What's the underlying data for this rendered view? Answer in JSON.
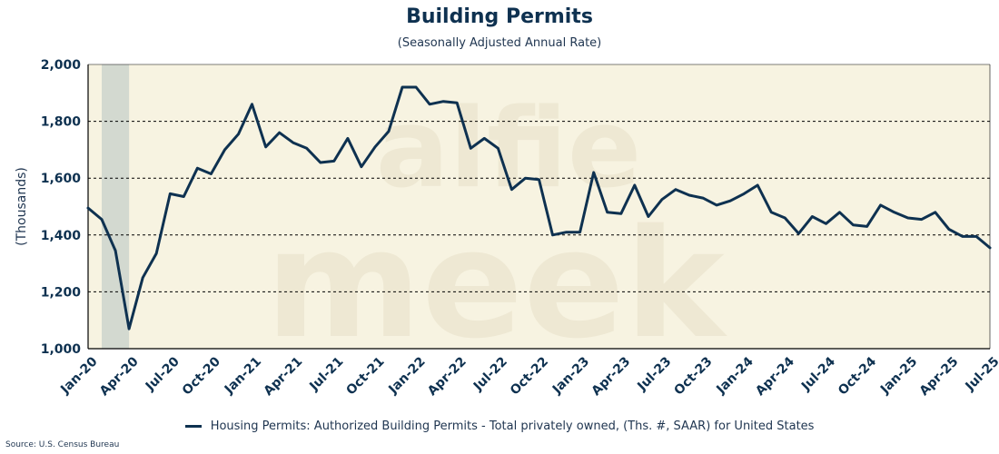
{
  "colors": {
    "plot_background": "#f7f3e1",
    "line": "#0e3150",
    "recession_band": "#cdd3cd",
    "grid": "#000000",
    "watermark": "#e7e0c8"
  },
  "watermark": "alfie meek",
  "legend_label": "Housing Permits: Authorized Building Permits - Total privately owned, (Ths. #, SAAR) for United States",
  "source": "Source: U.S. Census Bureau",
  "chart_data": {
    "type": "line",
    "title": "Building Permits",
    "subtitle": "(Seasonally Adjusted Annual Rate)",
    "xlabel": "",
    "ylabel": "(Thousands)",
    "ylim": [
      1000,
      2000
    ],
    "yticks": [
      1000,
      1200,
      1400,
      1600,
      1800,
      2000
    ],
    "ytick_labels": [
      "1,000",
      "1,200",
      "1,400",
      "1,600",
      "1,800",
      "2,000"
    ],
    "grid": "horizontal dashed",
    "x_tick_labels": [
      "Jan-20",
      "Apr-20",
      "Jul-20",
      "Oct-20",
      "Jan-21",
      "Apr-21",
      "Jul-21",
      "Oct-21",
      "Jan-22",
      "Apr-22",
      "Jul-22",
      "Oct-22",
      "Jan-23",
      "Apr-23",
      "Jul-23",
      "Oct-23",
      "Jan-24",
      "Apr-24",
      "Jul-24",
      "Oct-24",
      "Jan-25",
      "Apr-25",
      "Jul-25"
    ],
    "recession_shading": {
      "start_index": 1,
      "end_index": 3
    },
    "series": [
      {
        "name": "Housing Permits: Authorized Building Permits - Total privately owned, (Ths. #, SAAR) for United States",
        "start": "Jan-20",
        "values": [
          1495,
          1455,
          1345,
          1070,
          1250,
          1335,
          1545,
          1535,
          1635,
          1615,
          1700,
          1755,
          1860,
          1710,
          1760,
          1725,
          1705,
          1655,
          1660,
          1740,
          1640,
          1710,
          1765,
          1920,
          1920,
          1860,
          1870,
          1865,
          1705,
          1740,
          1705,
          1560,
          1600,
          1595,
          1400,
          1410,
          1410,
          1620,
          1480,
          1475,
          1575,
          1465,
          1525,
          1560,
          1540,
          1530,
          1505,
          1520,
          1545,
          1575,
          1480,
          1460,
          1405,
          1465,
          1440,
          1480,
          1435,
          1430,
          1505,
          1480,
          1460,
          1455,
          1480,
          1420,
          1395,
          1395,
          1355
        ]
      }
    ]
  }
}
